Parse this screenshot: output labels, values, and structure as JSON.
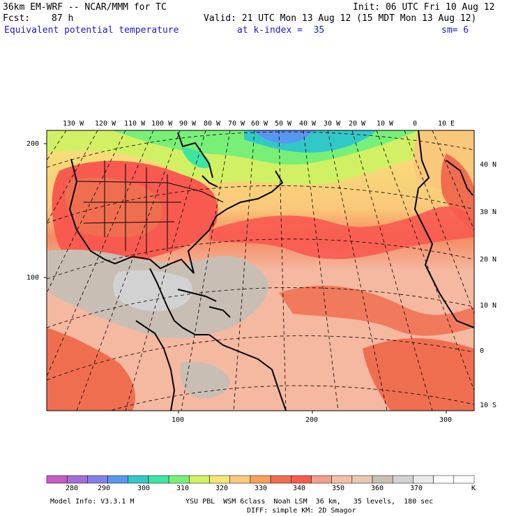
{
  "header": {
    "model_title": "36km EM-WRF -- NCAR/MMM for TC",
    "init": "Init: 06 UTC Fri 10 Aug 12",
    "fcst_label": "Fcst:",
    "fcst_value": "87 h",
    "valid": "Valid: 21 UTC Mon 13 Aug 12 (15 MDT Mon 13 Aug 12)",
    "field": "Equivalent potential temperature",
    "level": "at k-index =  35",
    "smoothing": "sm= 6"
  },
  "map": {
    "lon_labels": [
      "130 W",
      "120 W",
      "110 W",
      "100 W",
      "90 W",
      "80 W",
      "70 W",
      "60 W",
      "50 W",
      "40 W",
      "30 W",
      "20 W",
      "10 W",
      "0",
      "10 E"
    ],
    "lat_labels": [
      "40 N",
      "30 N",
      "20 N",
      "10 N",
      "0",
      "10 S"
    ],
    "left_axis_ticks": [
      "200",
      "100"
    ],
    "bottom_axis_ticks": [
      "100",
      "200",
      "300"
    ]
  },
  "colorbar": {
    "labels": [
      "280",
      "290",
      "300",
      "310",
      "320",
      "330",
      "340",
      "350",
      "360",
      "370"
    ],
    "unit": "K",
    "colors": [
      "#c85ac8",
      "#a46ed8",
      "#8282e6",
      "#5a96f0",
      "#32c8c8",
      "#3ce6a0",
      "#78f078",
      "#d2f064",
      "#f5e678",
      "#fac87a",
      "#f8a05a",
      "#f06e50",
      "#f85a50",
      "#f0a08c",
      "#f5bea8",
      "#e6c8b4",
      "#c8beb4",
      "#d2d2d2",
      "#ebebeb",
      "#ffffff",
      "#ffffff"
    ]
  },
  "footer": {
    "model_info": "Model Info: V3.3.1 M",
    "physics_line1": "YSU PBL  WSM 6class  Noah LSM  36 km,   35 levels,  180 sec",
    "physics_line2": "DIFF: simple KM: 2D Smagor"
  }
}
